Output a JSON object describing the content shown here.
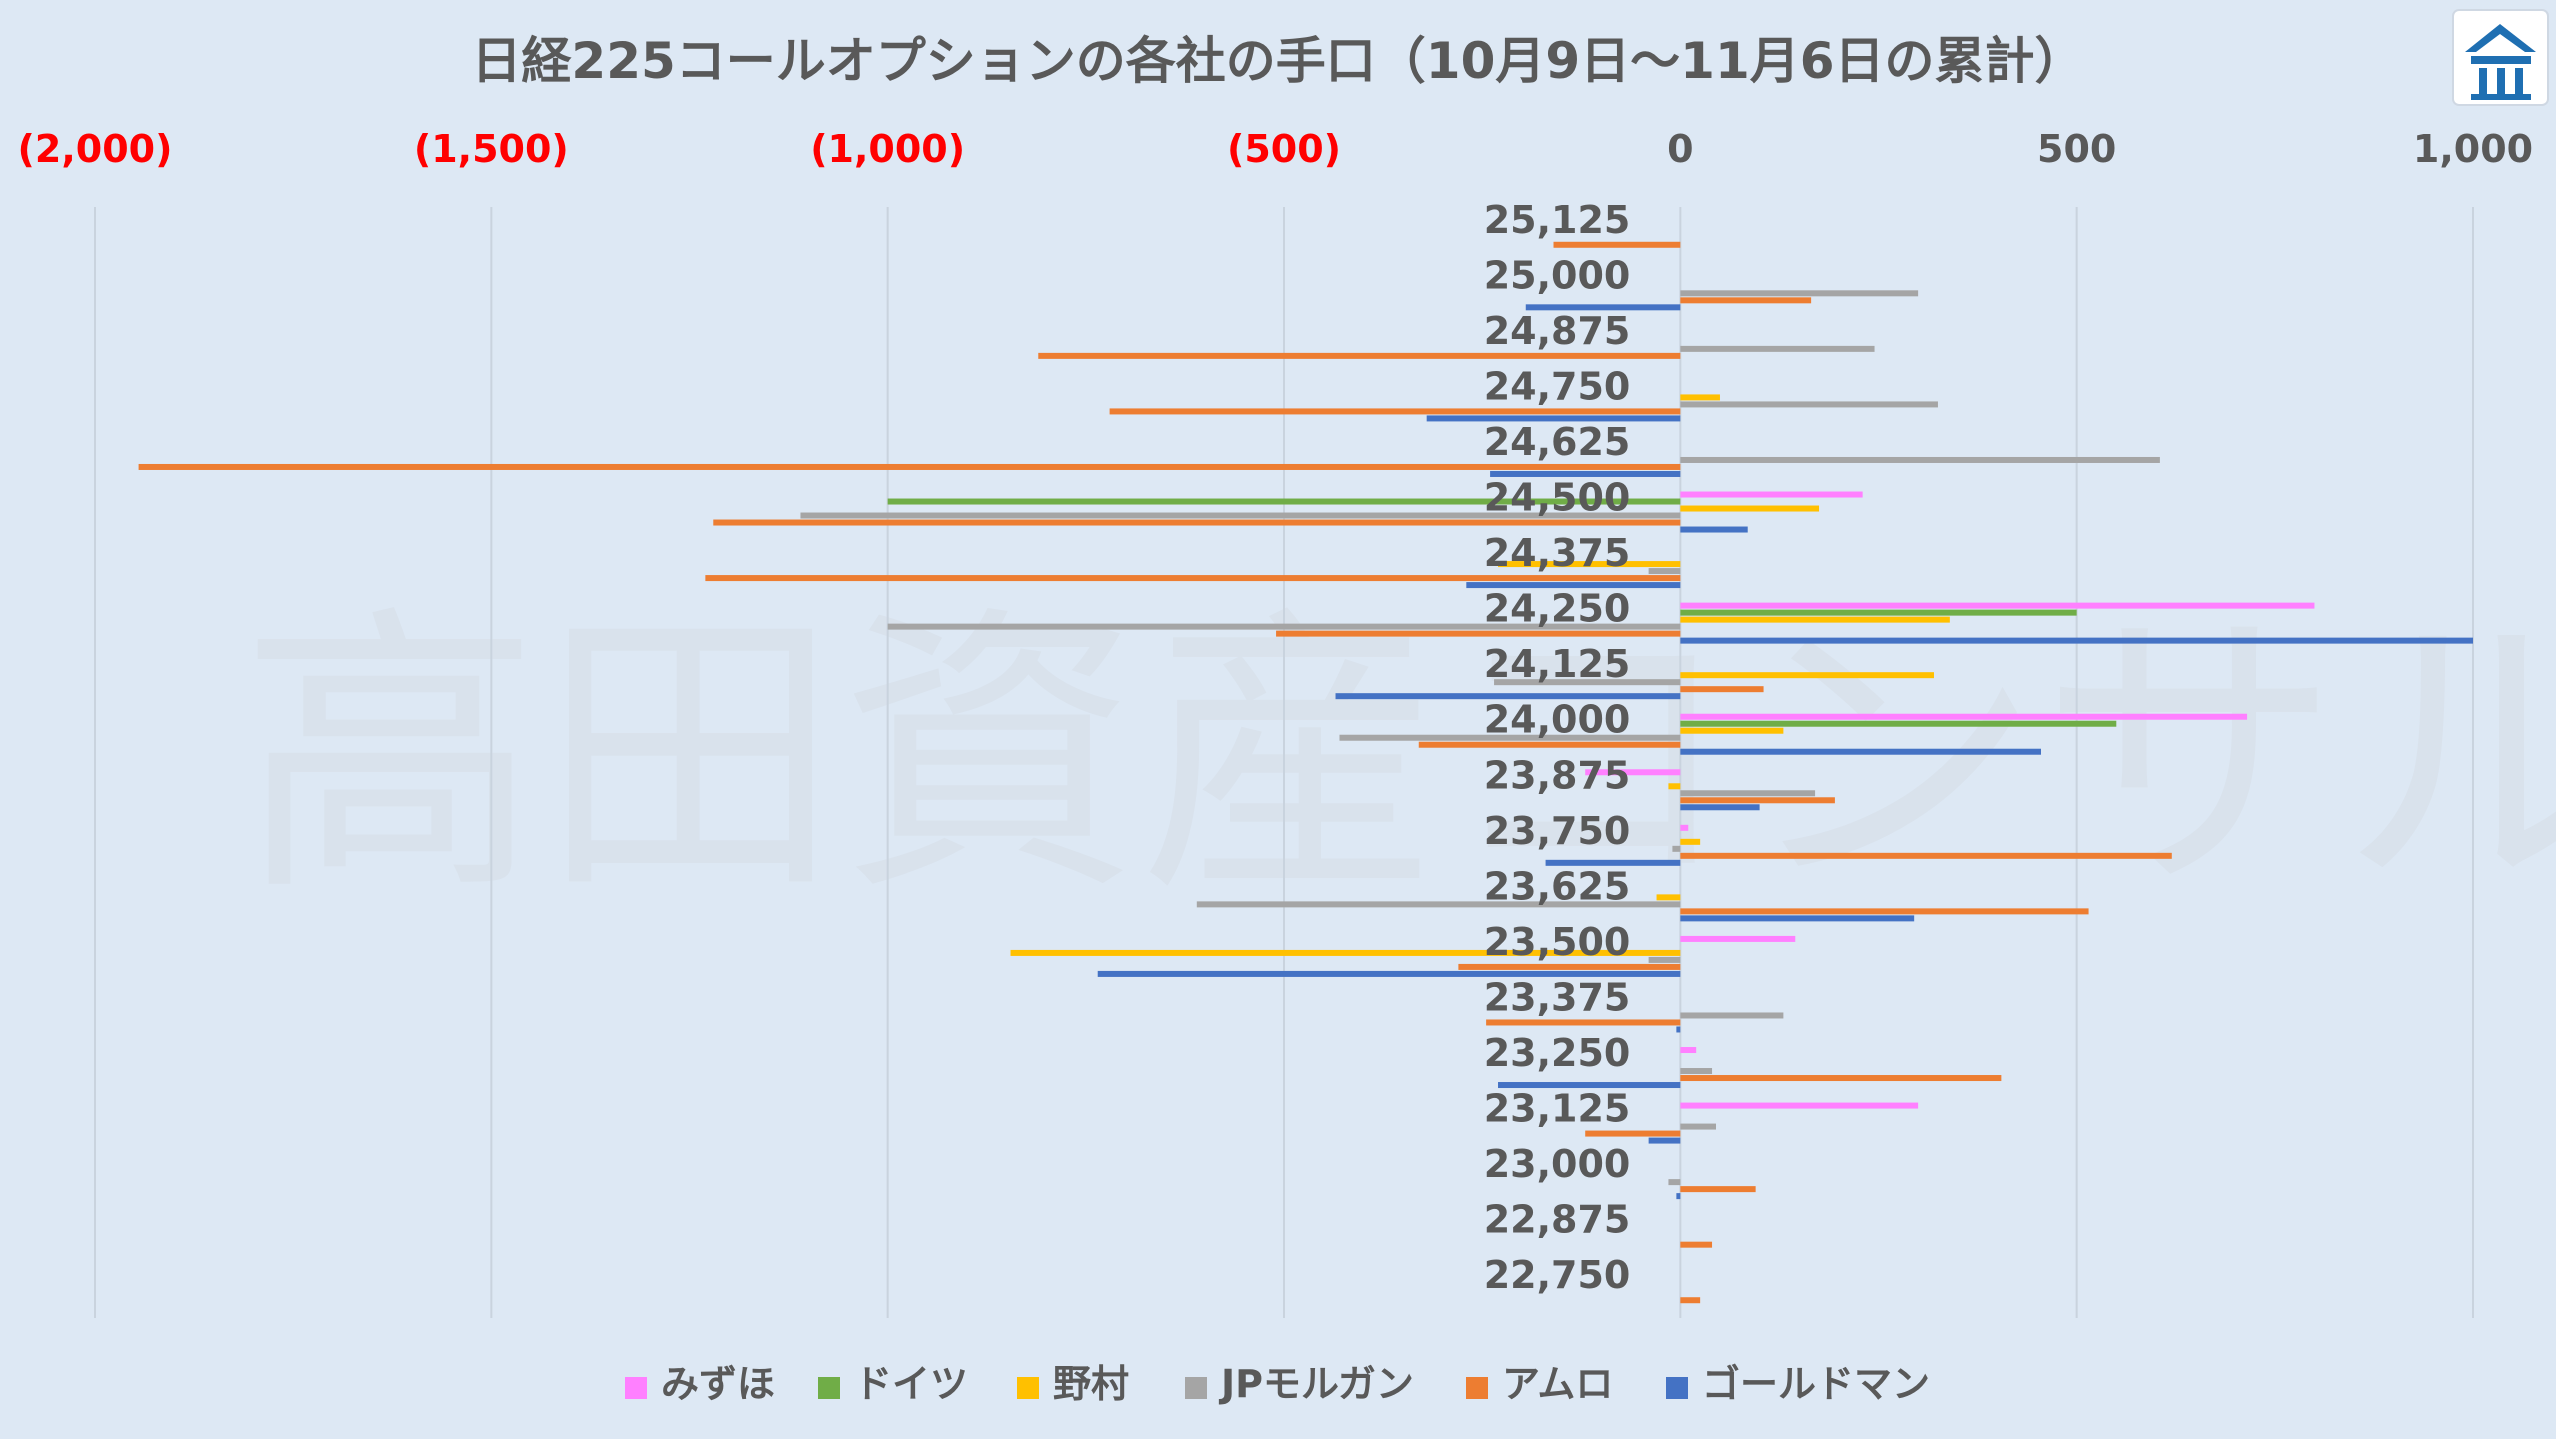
{
  "chart_data": {
    "type": "bar",
    "orientation": "horizontal",
    "title": "日経225コールオプションの各社の手口（10月9日～11月6日の累計）",
    "watermark": "高田資産コンサル",
    "xlim": [
      -2000,
      1000
    ],
    "x_ticks": [
      {
        "value": -2000,
        "label": "(2,000)",
        "negative": true
      },
      {
        "value": -1500,
        "label": "(1,500)",
        "negative": true
      },
      {
        "value": -1000,
        "label": "(1,000)",
        "negative": true
      },
      {
        "value": -500,
        "label": "(500)",
        "negative": true
      },
      {
        "value": 0,
        "label": "0",
        "negative": false
      },
      {
        "value": 500,
        "label": "500",
        "negative": false
      },
      {
        "value": 1000,
        "label": "1,000",
        "negative": false
      }
    ],
    "grid": true,
    "legend_position": "bottom",
    "categories": [
      "25,125",
      "25,000",
      "24,875",
      "24,750",
      "24,625",
      "24,500",
      "24,375",
      "24,250",
      "24,125",
      "24,000",
      "23,875",
      "23,750",
      "23,625",
      "23,500",
      "23,375",
      "23,250",
      "23,125",
      "23,000",
      "22,875",
      "22,750"
    ],
    "series": [
      {
        "name": "みずほ",
        "color": "#ff80ff",
        "values": [
          0,
          0,
          0,
          0,
          0,
          230,
          0,
          800,
          0,
          715,
          -120,
          10,
          0,
          145,
          0,
          20,
          300,
          0,
          0,
          0
        ]
      },
      {
        "name": "ドイツ",
        "color": "#70ad47",
        "values": [
          0,
          0,
          0,
          0,
          0,
          -1000,
          0,
          500,
          0,
          550,
          0,
          0,
          0,
          0,
          0,
          0,
          0,
          0,
          0,
          0
        ]
      },
      {
        "name": "野村",
        "color": "#ffc000",
        "values": [
          0,
          0,
          0,
          50,
          0,
          175,
          -230,
          340,
          320,
          130,
          -15,
          25,
          -30,
          -845,
          0,
          0,
          0,
          0,
          0,
          0
        ]
      },
      {
        "name": "JPモルガン",
        "color": "#a5a5a5",
        "values": [
          0,
          300,
          245,
          325,
          605,
          -1110,
          -40,
          -1000,
          -235,
          -430,
          170,
          -10,
          -610,
          -40,
          130,
          40,
          45,
          -15,
          0,
          0
        ]
      },
      {
        "name": "アムロ",
        "color": "#ed7d31",
        "values": [
          -160,
          165,
          -810,
          -720,
          -1945,
          -1220,
          -1230,
          -510,
          105,
          -330,
          195,
          620,
          515,
          -280,
          -245,
          405,
          -120,
          95,
          40,
          25
        ]
      },
      {
        "name": "ゴールドマン",
        "color": "#4472c4",
        "values": [
          0,
          -195,
          0,
          -320,
          -240,
          85,
          -270,
          1000,
          -435,
          455,
          100,
          -170,
          295,
          -735,
          -5,
          -230,
          -40,
          -5,
          0,
          0
        ]
      }
    ]
  },
  "logo": {
    "icon": "takata-shisan-logo-icon",
    "color": "#1f6fb2"
  }
}
